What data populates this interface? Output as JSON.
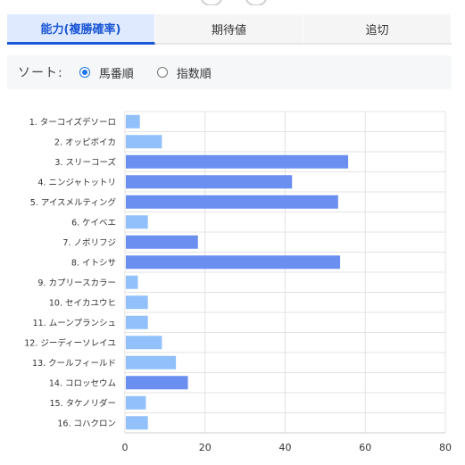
{
  "tabs": [
    {
      "label": "能力(複勝確率)",
      "active": true
    },
    {
      "label": "期待値",
      "active": false
    },
    {
      "label": "追切",
      "active": false
    }
  ],
  "sort": {
    "label": "ソート:",
    "options": [
      {
        "label": "馬番順",
        "checked": true
      },
      {
        "label": "指数順",
        "checked": false
      }
    ]
  },
  "colors": {
    "highlight_bar": "#6b8ff0",
    "normal_bar": "#91c0fb",
    "grid": "#e3e3e3",
    "tab_active": "#1a56d6"
  },
  "chart_data": {
    "type": "bar",
    "orientation": "horizontal",
    "categories": [
      "1. ターコイズデソーロ",
      "2. オッピボイカ",
      "3. スリーコーズ",
      "4. ニンジャトットリ",
      "5. アイスメルティング",
      "6. ケイベエ",
      "7. ノボリフジ",
      "8. イトシサ",
      "9. カプリースカラー",
      "10. セイカユウヒ",
      "11. ムーンプランシュ",
      "12. ジーディーソレイユ",
      "13. クールフィールド",
      "14. コロッセウム",
      "15. タケノリダー",
      "16. コハクロン"
    ],
    "values": [
      3.5,
      9,
      55.5,
      41.5,
      53,
      5.5,
      18,
      53.5,
      3,
      5.5,
      5.5,
      9,
      12.5,
      15.5,
      5,
      5.5
    ],
    "highlighted": [
      false,
      false,
      true,
      true,
      true,
      false,
      true,
      true,
      false,
      false,
      false,
      false,
      false,
      true,
      false,
      false
    ],
    "xlim": [
      0,
      80
    ],
    "xticks": [
      0,
      20,
      40,
      60,
      80
    ],
    "grid": true
  }
}
